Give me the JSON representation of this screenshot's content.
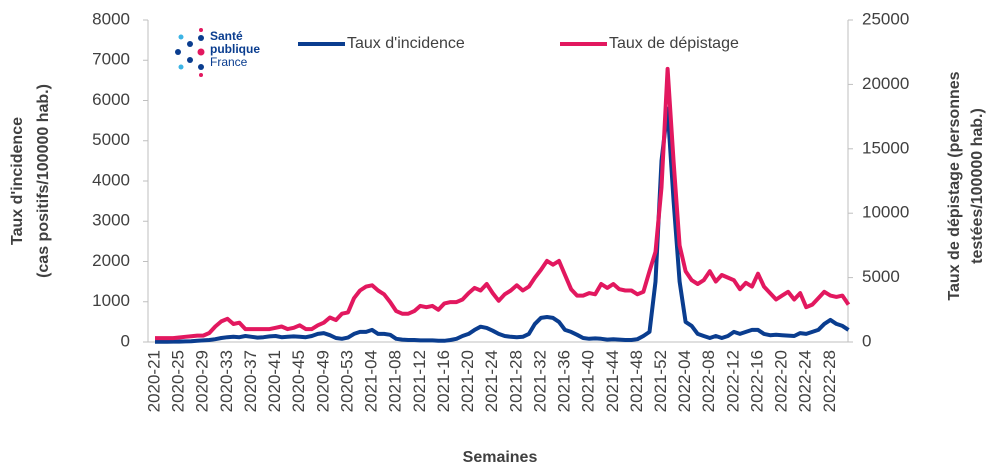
{
  "chart_data": {
    "type": "line",
    "logo": [
      "Santé",
      "publique",
      "France"
    ],
    "xlabel": "Semaines",
    "ylabel": [
      "Taux d'incidence",
      "(cas  positifs/100000 hab.)"
    ],
    "y2label": [
      "Taux de dépistage  (personnes",
      "testées/100000 hab.)"
    ],
    "categories": [
      "2020-21",
      null,
      null,
      null,
      "2020-25",
      null,
      null,
      null,
      "2020-29",
      null,
      null,
      null,
      "2020-33",
      null,
      null,
      null,
      "2020-37",
      null,
      null,
      null,
      "2020-41",
      null,
      null,
      null,
      "2020-45",
      null,
      null,
      null,
      "2020-49",
      null,
      null,
      null,
      "2020-53",
      null,
      null,
      null,
      "2021-04",
      null,
      null,
      null,
      "2021-08",
      null,
      null,
      null,
      "2021-12",
      null,
      null,
      null,
      "2021-16",
      null,
      null,
      null,
      "2021-20",
      null,
      null,
      null,
      "2021-24",
      null,
      null,
      null,
      "2021-28",
      null,
      null,
      null,
      "2021-32",
      null,
      null,
      null,
      "2021-36",
      null,
      null,
      null,
      "2021-40",
      null,
      null,
      null,
      "2021-44",
      null,
      null,
      null,
      "2021-48",
      null,
      null,
      null,
      "2021-52",
      null,
      null,
      null,
      "2022-04",
      null,
      null,
      null,
      "2022-08",
      null,
      null,
      null,
      "2022-12",
      null,
      null,
      null,
      "2022-16",
      null,
      null,
      null,
      "2022-20",
      null,
      null,
      null,
      "2022-24",
      null,
      null,
      null,
      "2022-28",
      null,
      null,
      null
    ],
    "series": [
      {
        "name": "Taux d'incidence",
        "color": "#0a3d8f",
        "values": [
          5,
          5,
          5,
          10,
          10,
          15,
          20,
          30,
          40,
          50,
          70,
          100,
          120,
          130,
          120,
          150,
          130,
          110,
          120,
          140,
          150,
          120,
          130,
          140,
          130,
          120,
          150,
          200,
          220,
          170,
          100,
          80,
          110,
          200,
          250,
          250,
          300,
          200,
          200,
          180,
          80,
          60,
          50,
          50,
          40,
          40,
          40,
          30,
          30,
          50,
          80,
          150,
          200,
          300,
          380,
          350,
          280,
          200,
          150,
          130,
          120,
          130,
          200,
          450,
          600,
          620,
          600,
          500,
          300,
          250,
          180,
          100,
          80,
          90,
          80,
          60,
          70,
          60,
          50,
          50,
          70,
          150,
          250,
          1500,
          4500,
          5800,
          3500,
          1500,
          500,
          400,
          200,
          150,
          100,
          150,
          100,
          150,
          250,
          200,
          250,
          300,
          300,
          200,
          170,
          180,
          170,
          160,
          150,
          220,
          200,
          250,
          300,
          450,
          550,
          450,
          400,
          300
        ]
      },
      {
        "name": "Taux de dépistage",
        "color": "#e2185f",
        "axis": "y2",
        "values": [
          300,
          300,
          300,
          300,
          350,
          400,
          450,
          500,
          500,
          700,
          1200,
          1600,
          1800,
          1400,
          1500,
          1000,
          1000,
          1000,
          1000,
          1000,
          1100,
          1200,
          1000,
          1100,
          1300,
          1000,
          1000,
          1300,
          1500,
          1900,
          1700,
          2200,
          2300,
          3400,
          4000,
          4300,
          4400,
          4000,
          3700,
          3100,
          2400,
          2200,
          2200,
          2400,
          2800,
          2700,
          2800,
          2500,
          3000,
          3100,
          3100,
          3300,
          3800,
          4200,
          4000,
          4500,
          3800,
          3200,
          3700,
          4000,
          4400,
          4000,
          4300,
          5000,
          5600,
          6300,
          6000,
          6300,
          5200,
          4100,
          3600,
          3600,
          3800,
          3700,
          4500,
          4200,
          4500,
          4100,
          4000,
          4000,
          3700,
          3900,
          5500,
          7000,
          12000,
          21200,
          14000,
          7500,
          5500,
          4800,
          4500,
          4800,
          5500,
          4700,
          5200,
          5000,
          4800,
          4100,
          4600,
          4300,
          5300,
          4300,
          3800,
          3300,
          3600,
          3900,
          3300,
          3800,
          2700,
          2900,
          3400,
          3900,
          3600,
          3500,
          3600,
          2900
        ]
      }
    ],
    "ylim": [
      0,
      8000
    ],
    "yticks": [
      0,
      1000,
      2000,
      3000,
      4000,
      5000,
      6000,
      7000,
      8000
    ],
    "y2lim": [
      0,
      25000
    ],
    "y2ticks": [
      0,
      5000,
      10000,
      15000,
      20000,
      25000
    ]
  }
}
